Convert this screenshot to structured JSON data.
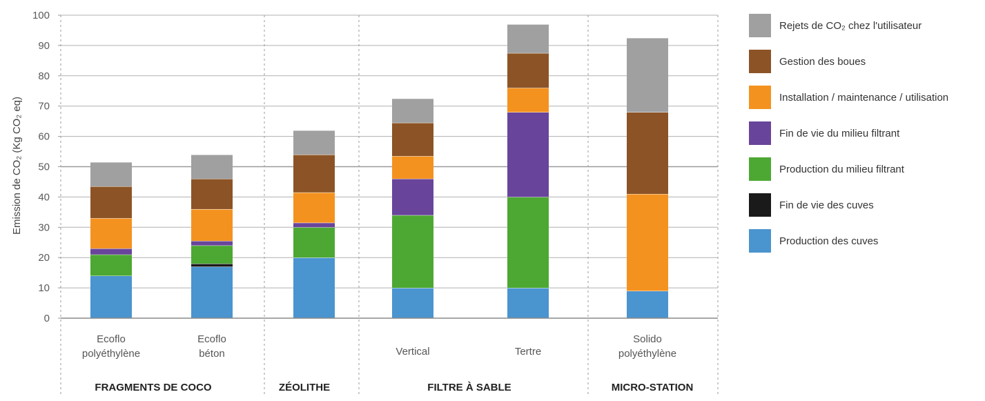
{
  "chart_data": {
    "type": "bar",
    "stacked": true,
    "ylabel": "Emission de CO₂ (Kg CO₂ eq)",
    "ylim": [
      0,
      100
    ],
    "yticks": [
      "0",
      "10",
      "20",
      "30",
      "40",
      "50",
      "60",
      "70",
      "80",
      "90",
      "100"
    ],
    "grid": true,
    "legend_position": "right",
    "groups": [
      {
        "label": "FRAGMENTS DE COCO",
        "categories": [
          "Ecoflo polyéthylène",
          "Ecoflo béton"
        ]
      },
      {
        "label": "ZÉOLITHE",
        "categories": [
          ""
        ]
      },
      {
        "label": "FILTRE À SABLE",
        "categories": [
          "Vertical",
          "Tertre"
        ]
      },
      {
        "label": "MICRO-STATION",
        "categories": [
          "Solido polyéthylène"
        ]
      }
    ],
    "categories": [
      "Ecoflo polyéthylène",
      "Ecoflo béton",
      "",
      "Vertical",
      "Tertre",
      "Solido polyéthylène"
    ],
    "series": [
      {
        "name": "Production des cuves",
        "color": "#4a94cf",
        "values": [
          14,
          17,
          20,
          10,
          10,
          9
        ]
      },
      {
        "name": "Fin de vie des cuves",
        "color": "#1a1a1a",
        "values": [
          0,
          1,
          0,
          0,
          0,
          0
        ]
      },
      {
        "name": "Production du milieu filtrant",
        "color": "#4ca832",
        "values": [
          7,
          6,
          10,
          24,
          30,
          0
        ]
      },
      {
        "name": "Fin de vie du milieu filtrant",
        "color": "#68449b",
        "values": [
          2,
          1.5,
          1.5,
          12,
          28,
          0
        ]
      },
      {
        "name": "Installation / maintenance / utilisation",
        "color": "#f4921f",
        "values": [
          10,
          10.5,
          10,
          7.5,
          8,
          32
        ]
      },
      {
        "name": "Gestion des boues",
        "color": "#8c5426",
        "values": [
          10.5,
          10,
          12.5,
          11,
          11.5,
          27
        ]
      },
      {
        "name": "Rejets de CO₂ chez l'utilisateur",
        "color": "#a0a0a0",
        "values": [
          8,
          8,
          8,
          8,
          9.5,
          24.5
        ]
      }
    ],
    "legend_order": [
      6,
      5,
      4,
      3,
      2,
      1,
      0
    ]
  }
}
